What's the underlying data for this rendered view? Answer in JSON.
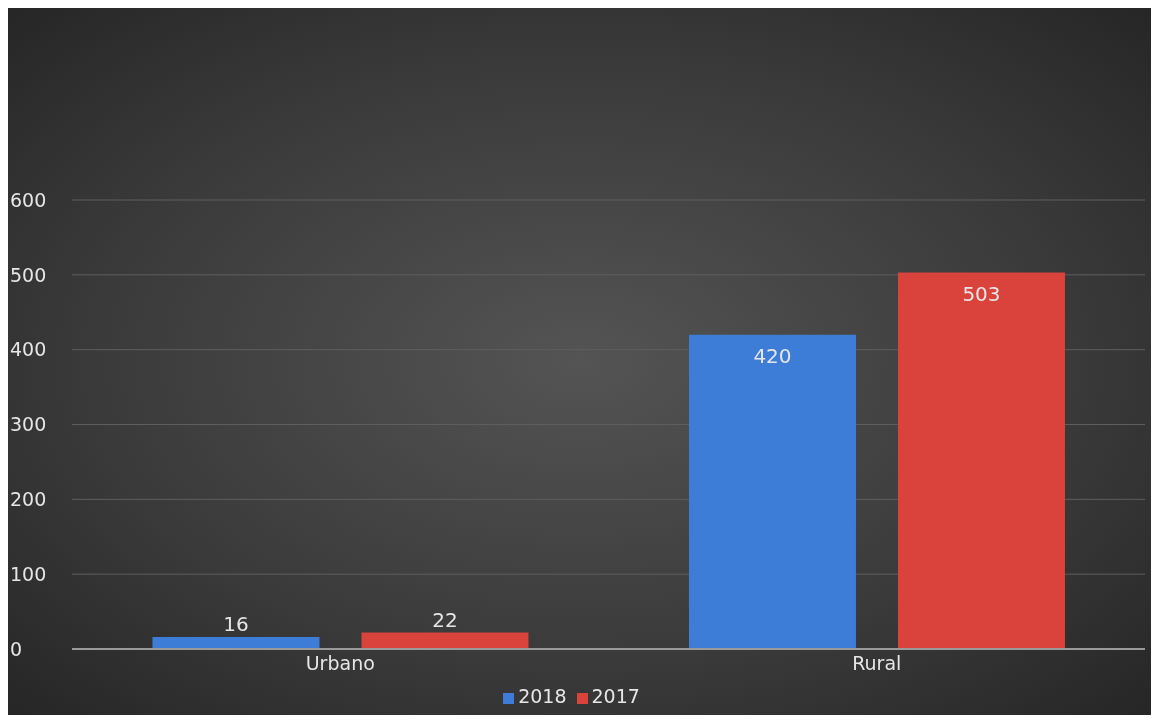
{
  "chart_data": {
    "type": "bar",
    "categories": [
      "Urbano",
      "Rural"
    ],
    "series": [
      {
        "name": "2018",
        "color": "#3d7dd8",
        "values": [
          16,
          420
        ]
      },
      {
        "name": "2017",
        "color": "#d9433c",
        "values": [
          22,
          503
        ]
      }
    ],
    "ylim": [
      0,
      600
    ],
    "yticks": [
      0,
      100,
      200,
      300,
      400,
      500,
      600
    ],
    "grid": "y",
    "legend": "bottom",
    "data_labels": true
  }
}
